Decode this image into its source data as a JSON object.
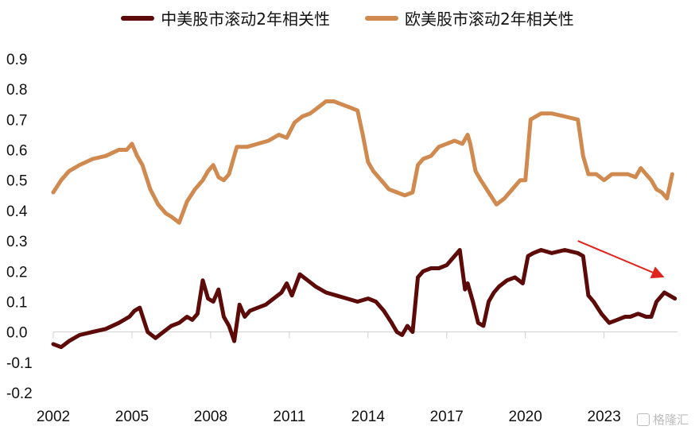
{
  "colors": {
    "series1": "#5c0b08",
    "series2": "#d08a4f",
    "arrow": "#e0231c",
    "axis": "#cfcfcf"
  },
  "watermark": "格隆汇",
  "chart_data": {
    "type": "line",
    "title": "",
    "xlabel": "",
    "ylabel": "",
    "ylim": [
      -0.2,
      0.9
    ],
    "xlim": [
      2002,
      2025.8
    ],
    "legend_position": "top",
    "yticks": [
      -0.2,
      -0.1,
      0.0,
      0.1,
      0.2,
      0.3,
      0.4,
      0.5,
      0.6,
      0.7,
      0.8,
      0.9
    ],
    "ytick_labels": [
      "-0.2",
      "-0.1",
      "0.0",
      "0.1",
      "0.2",
      "0.3",
      "0.4",
      "0.5",
      "0.6",
      "0.7",
      "0.8",
      "0.9"
    ],
    "xticks": [
      2002,
      2005,
      2008,
      2011,
      2014,
      2017,
      2020,
      2023
    ],
    "xtick_labels": [
      "2002",
      "2005",
      "2008",
      "2011",
      "2014",
      "2017",
      "2020",
      "2023"
    ],
    "annotation": {
      "type": "arrow",
      "from": [
        2022.0,
        0.3
      ],
      "to": [
        2025.3,
        0.18
      ]
    },
    "series": [
      {
        "name": "中美股市滚动2年相关性",
        "x": [
          2002.0,
          2002.3,
          2002.6,
          2003.0,
          2003.5,
          2004.0,
          2004.5,
          2004.9,
          2005.1,
          2005.3,
          2005.6,
          2005.9,
          2006.2,
          2006.5,
          2006.8,
          2007.1,
          2007.3,
          2007.5,
          2007.7,
          2007.9,
          2008.1,
          2008.3,
          2008.5,
          2008.7,
          2008.9,
          2009.1,
          2009.3,
          2009.5,
          2009.8,
          2010.1,
          2010.4,
          2010.7,
          2010.9,
          2011.1,
          2011.4,
          2011.7,
          2012.0,
          2012.4,
          2012.8,
          2013.2,
          2013.6,
          2014.0,
          2014.3,
          2014.6,
          2014.9,
          2015.1,
          2015.3,
          2015.5,
          2015.7,
          2015.9,
          2016.1,
          2016.4,
          2016.7,
          2017.0,
          2017.3,
          2017.5,
          2017.7,
          2017.8,
          2018.0,
          2018.2,
          2018.4,
          2018.6,
          2018.8,
          2019.0,
          2019.3,
          2019.6,
          2019.9,
          2020.1,
          2020.3,
          2020.6,
          2021.0,
          2021.5,
          2022.0,
          2022.2,
          2022.4,
          2022.6,
          2022.9,
          2023.2,
          2023.5,
          2023.8,
          2024.0,
          2024.3,
          2024.6,
          2024.8,
          2025.0,
          2025.3,
          2025.5,
          2025.7
        ],
        "values": [
          -0.04,
          -0.05,
          -0.03,
          -0.01,
          0.0,
          0.01,
          0.03,
          0.05,
          0.07,
          0.08,
          0.0,
          -0.02,
          0.0,
          0.02,
          0.03,
          0.05,
          0.04,
          0.06,
          0.17,
          0.11,
          0.1,
          0.14,
          0.05,
          0.02,
          -0.03,
          0.09,
          0.05,
          0.07,
          0.08,
          0.09,
          0.11,
          0.13,
          0.16,
          0.12,
          0.19,
          0.17,
          0.15,
          0.13,
          0.12,
          0.11,
          0.1,
          0.11,
          0.1,
          0.07,
          0.03,
          0.0,
          -0.01,
          0.02,
          0.0,
          0.18,
          0.2,
          0.21,
          0.21,
          0.22,
          0.25,
          0.27,
          0.14,
          0.16,
          0.1,
          0.03,
          0.02,
          0.1,
          0.13,
          0.15,
          0.17,
          0.18,
          0.16,
          0.25,
          0.26,
          0.27,
          0.26,
          0.27,
          0.26,
          0.25,
          0.12,
          0.1,
          0.06,
          0.03,
          0.04,
          0.05,
          0.05,
          0.06,
          0.05,
          0.05,
          0.1,
          0.13,
          0.12,
          0.11
        ]
      },
      {
        "name": "欧美股市滚动2年相关性",
        "x": [
          2002.0,
          2002.3,
          2002.6,
          2003.0,
          2003.5,
          2004.0,
          2004.5,
          2004.8,
          2005.0,
          2005.2,
          2005.4,
          2005.7,
          2006.0,
          2006.3,
          2006.5,
          2006.8,
          2007.1,
          2007.4,
          2007.7,
          2007.9,
          2008.1,
          2008.3,
          2008.5,
          2008.7,
          2009.0,
          2009.4,
          2009.8,
          2010.2,
          2010.6,
          2010.9,
          2011.2,
          2011.5,
          2011.8,
          2012.1,
          2012.4,
          2012.7,
          2013.0,
          2013.3,
          2013.6,
          2013.8,
          2014.0,
          2014.2,
          2014.5,
          2014.8,
          2015.1,
          2015.4,
          2015.7,
          2015.9,
          2016.1,
          2016.4,
          2016.7,
          2017.0,
          2017.3,
          2017.6,
          2017.8,
          2017.9,
          2018.1,
          2018.3,
          2018.6,
          2018.9,
          2019.2,
          2019.5,
          2019.8,
          2020.0,
          2020.2,
          2020.6,
          2021.0,
          2021.5,
          2022.0,
          2022.2,
          2022.4,
          2022.7,
          2023.0,
          2023.3,
          2023.6,
          2023.9,
          2024.2,
          2024.4,
          2024.6,
          2024.8,
          2025.0,
          2025.2,
          2025.4,
          2025.6
        ],
        "values": [
          0.46,
          0.5,
          0.53,
          0.55,
          0.57,
          0.58,
          0.6,
          0.6,
          0.62,
          0.58,
          0.55,
          0.47,
          0.42,
          0.39,
          0.38,
          0.36,
          0.43,
          0.47,
          0.5,
          0.53,
          0.55,
          0.51,
          0.5,
          0.52,
          0.61,
          0.61,
          0.62,
          0.63,
          0.65,
          0.64,
          0.69,
          0.71,
          0.72,
          0.74,
          0.76,
          0.76,
          0.75,
          0.74,
          0.73,
          0.65,
          0.56,
          0.53,
          0.5,
          0.47,
          0.46,
          0.45,
          0.46,
          0.55,
          0.57,
          0.58,
          0.61,
          0.62,
          0.63,
          0.62,
          0.65,
          0.62,
          0.53,
          0.5,
          0.46,
          0.42,
          0.44,
          0.47,
          0.5,
          0.5,
          0.7,
          0.72,
          0.72,
          0.71,
          0.7,
          0.58,
          0.52,
          0.52,
          0.5,
          0.52,
          0.52,
          0.52,
          0.51,
          0.54,
          0.52,
          0.5,
          0.47,
          0.46,
          0.44,
          0.52
        ]
      }
    ]
  }
}
